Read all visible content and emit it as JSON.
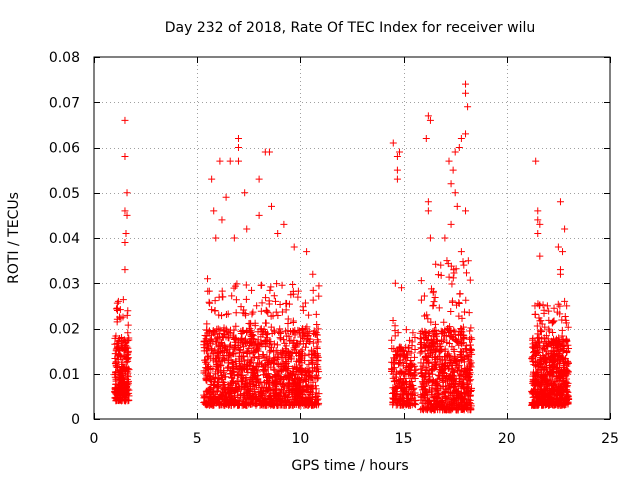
{
  "chart_data": {
    "type": "scatter",
    "title": "Day 232 of 2018, Rate Of TEC Index for receiver wilu",
    "xlabel": "GPS time / hours",
    "ylabel": "ROTI / TECUs",
    "xlim": [
      0,
      25
    ],
    "ylim": [
      0,
      0.08
    ],
    "xticks": [
      0,
      5,
      10,
      15,
      20,
      25
    ],
    "xtick_labels": [
      "0",
      "5",
      "10",
      "15",
      "20",
      "25"
    ],
    "yticks": [
      0,
      0.01,
      0.02,
      0.03,
      0.04,
      0.05,
      0.06,
      0.07,
      0.08
    ],
    "ytick_labels": [
      "0",
      "0.01",
      "0.02",
      "0.03",
      "0.04",
      "0.05",
      "0.06",
      "0.07",
      "0.08"
    ],
    "grid": true,
    "marker": "plus",
    "color": "#ff0000",
    "clusters": [
      {
        "x_range": [
          1.0,
          1.7
        ],
        "base": [
          0.004,
          0.018
        ],
        "spread_top": 0.027,
        "points": 260,
        "outliers": [
          [
            1.5,
            0.066
          ],
          [
            1.5,
            0.058
          ],
          [
            1.6,
            0.05
          ],
          [
            1.5,
            0.046
          ],
          [
            1.6,
            0.045
          ],
          [
            1.55,
            0.041
          ],
          [
            1.5,
            0.039
          ],
          [
            1.5,
            0.033
          ]
        ]
      },
      {
        "x_range": [
          5.3,
          10.9
        ],
        "base": [
          0.003,
          0.02
        ],
        "spread_top": 0.03,
        "points": 1400,
        "outliers": [
          [
            7.0,
            0.062
          ],
          [
            7.0,
            0.06
          ],
          [
            8.3,
            0.059
          ],
          [
            8.5,
            0.059
          ],
          [
            6.1,
            0.057
          ],
          [
            7.0,
            0.057
          ],
          [
            6.6,
            0.057
          ],
          [
            8.0,
            0.053
          ],
          [
            5.7,
            0.053
          ],
          [
            6.4,
            0.049
          ],
          [
            7.3,
            0.05
          ],
          [
            8.6,
            0.047
          ],
          [
            5.8,
            0.046
          ],
          [
            6.2,
            0.044
          ],
          [
            8.0,
            0.045
          ],
          [
            9.2,
            0.043
          ],
          [
            10.3,
            0.037
          ],
          [
            5.9,
            0.04
          ],
          [
            7.4,
            0.042
          ],
          [
            6.8,
            0.04
          ],
          [
            8.9,
            0.041
          ],
          [
            9.7,
            0.038
          ],
          [
            10.6,
            0.032
          ],
          [
            5.5,
            0.031
          ]
        ]
      },
      {
        "x_range": [
          14.4,
          15.6
        ],
        "base": [
          0.003,
          0.016
        ],
        "spread_top": 0.022,
        "points": 240,
        "outliers": [
          [
            14.5,
            0.061
          ],
          [
            14.7,
            0.058
          ],
          [
            14.8,
            0.059
          ],
          [
            14.7,
            0.055
          ],
          [
            14.7,
            0.053
          ],
          [
            14.6,
            0.03
          ],
          [
            14.9,
            0.029
          ]
        ]
      },
      {
        "x_range": [
          15.8,
          18.3
        ],
        "base": [
          0.002,
          0.02
        ],
        "spread_top": 0.035,
        "points": 700,
        "outliers": [
          [
            18.0,
            0.074
          ],
          [
            18.0,
            0.072
          ],
          [
            18.1,
            0.069
          ],
          [
            16.2,
            0.067
          ],
          [
            16.3,
            0.066
          ],
          [
            18.0,
            0.063
          ],
          [
            16.1,
            0.062
          ],
          [
            17.8,
            0.062
          ],
          [
            17.5,
            0.059
          ],
          [
            17.7,
            0.06
          ],
          [
            17.2,
            0.057
          ],
          [
            17.4,
            0.055
          ],
          [
            17.3,
            0.052
          ],
          [
            17.5,
            0.05
          ],
          [
            16.2,
            0.048
          ],
          [
            16.2,
            0.046
          ],
          [
            17.6,
            0.047
          ],
          [
            18.0,
            0.046
          ],
          [
            17.3,
            0.043
          ],
          [
            16.3,
            0.04
          ],
          [
            17.0,
            0.04
          ],
          [
            17.8,
            0.037
          ],
          [
            16.8,
            0.034
          ],
          [
            17.1,
            0.035
          ]
        ]
      },
      {
        "x_range": [
          21.2,
          23.0
        ],
        "base": [
          0.003,
          0.018
        ],
        "spread_top": 0.026,
        "points": 650,
        "outliers": [
          [
            21.4,
            0.057
          ],
          [
            22.6,
            0.048
          ],
          [
            21.5,
            0.046
          ],
          [
            21.5,
            0.044
          ],
          [
            21.6,
            0.043
          ],
          [
            22.8,
            0.042
          ],
          [
            21.5,
            0.041
          ],
          [
            22.5,
            0.038
          ],
          [
            22.7,
            0.037
          ],
          [
            21.6,
            0.036
          ],
          [
            22.6,
            0.033
          ],
          [
            22.6,
            0.032
          ],
          [
            22.8,
            0.026
          ],
          [
            22.9,
            0.025
          ]
        ]
      }
    ]
  }
}
